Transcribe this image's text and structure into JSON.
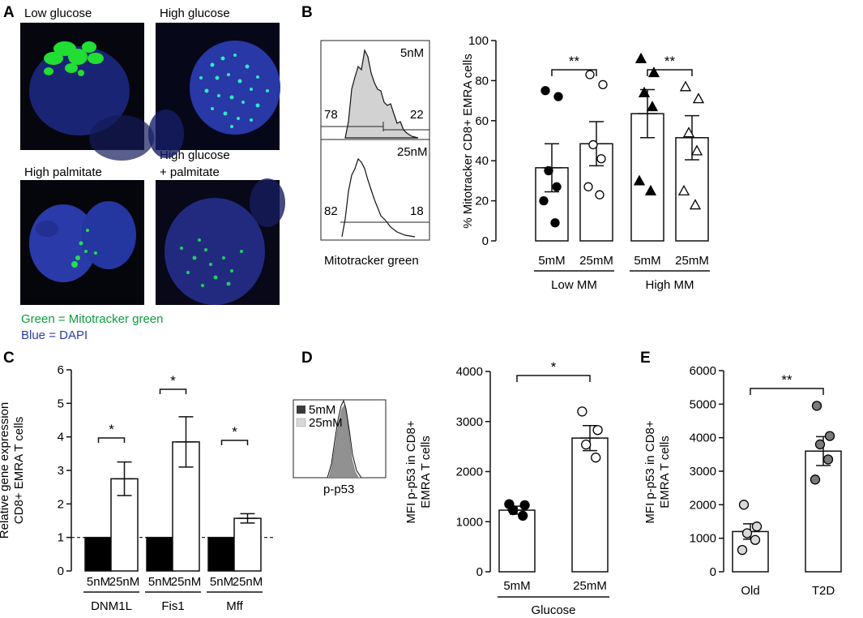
{
  "panel_letters": {
    "a": "A",
    "b": "B",
    "c": "C",
    "d": "D",
    "e": "E"
  },
  "panelA": {
    "images": [
      {
        "label": "Low glucose",
        "nucleus": "#1f2a86",
        "dots": "#22dd33"
      },
      {
        "label": "High glucose",
        "nucleus": "#2838a6",
        "dots": "#33e6c4"
      },
      {
        "label": "High palmitate",
        "nucleus": "#2a3aa8",
        "dots": "#22dd55"
      },
      {
        "label_line1": "High glucose",
        "label_line2": "+ palmitate",
        "nucleus": "#222a80",
        "dots": "#22cc66"
      }
    ],
    "caption_green": "Green = Mitotracker green",
    "caption_blue": "Blue = DAPI"
  },
  "panelB_histogram": {
    "top": {
      "label": "5nM",
      "left_pct": "78",
      "right_pct": "22"
    },
    "bottom": {
      "label": "25nM",
      "left_pct": "82",
      "right_pct": "18"
    },
    "xlabel": "Mitotracker green"
  },
  "chart_data": [
    {
      "id": "B",
      "type": "bar",
      "ylabel": "% Mitotracker CD8+ EMRA cells",
      "ylim": [
        0,
        100
      ],
      "yticks": [
        "0",
        "20",
        "40",
        "60",
        "80",
        "100"
      ],
      "categories": [
        "5mM",
        "25mM",
        "5mM",
        "25mM"
      ],
      "groups": [
        "Low MM",
        "High MM"
      ],
      "values": [
        36.5,
        48.5,
        63.5,
        51.5
      ],
      "sem": [
        12,
        11,
        12,
        11
      ],
      "points": [
        [
          75,
          72,
          35,
          27,
          20,
          9
        ],
        [
          83,
          78,
          48,
          41,
          27,
          23
        ],
        [
          91,
          84,
          74,
          67,
          30,
          25
        ],
        [
          77,
          71,
          54,
          45,
          25,
          18
        ]
      ],
      "markers": [
        "filled-circle",
        "open-circle",
        "filled-triangle",
        "open-triangle"
      ],
      "significance": [
        {
          "text": "**",
          "between": [
            0,
            1
          ]
        },
        {
          "text": "**",
          "between": [
            2,
            3
          ]
        }
      ]
    },
    {
      "id": "C",
      "type": "bar",
      "ylabel_line1": "Relative gene expression",
      "ylabel_line2": "CD8+ EMRA T cells",
      "ylim": [
        0,
        6
      ],
      "yticks": [
        "0",
        "1",
        "2",
        "3",
        "4",
        "5",
        "6"
      ],
      "categories": [
        "5nM",
        "25nM",
        "5nM",
        "25nM",
        "5nM",
        "25nM"
      ],
      "groups": [
        "DNM1L",
        "Fis1",
        "Mff"
      ],
      "values": [
        1,
        2.75,
        1,
        3.85,
        1,
        1.57
      ],
      "sem": [
        0,
        0.5,
        0,
        0.75,
        0,
        0.14
      ],
      "reference_line": 1,
      "significance": [
        {
          "text": "*",
          "between": [
            0,
            1
          ]
        },
        {
          "text": "*",
          "between": [
            2,
            3
          ]
        },
        {
          "text": "*",
          "between": [
            4,
            5
          ]
        }
      ]
    },
    {
      "id": "D",
      "type": "bar",
      "ylabel_line1": "MFI p-p53 in CD8+",
      "ylabel_line2": "EMRA T cells",
      "ylim": [
        0,
        4000
      ],
      "yticks": [
        "0",
        "1000",
        "2000",
        "3000",
        "4000"
      ],
      "categories": [
        "5mM",
        "25mM"
      ],
      "group": "Glucose",
      "values": [
        1230,
        2670
      ],
      "sem": [
        80,
        250
      ],
      "points": [
        [
          1350,
          1330,
          1230,
          1120
        ],
        [
          3200,
          2830,
          2540,
          2280
        ]
      ],
      "significance": [
        {
          "text": "*",
          "between": [
            0,
            1
          ]
        }
      ]
    },
    {
      "id": "E",
      "type": "bar",
      "ylabel_line1": "MFI p-p53 in CD8+",
      "ylabel_line2": "EMRA T cells",
      "ylim": [
        0,
        6000
      ],
      "yticks": [
        "0",
        "1000",
        "2000",
        "3000",
        "4000",
        "5000",
        "6000"
      ],
      "categories": [
        "Old",
        "T2D"
      ],
      "values": [
        1200,
        3600
      ],
      "sem": [
        230,
        430
      ],
      "points": [
        [
          2000,
          1350,
          1150,
          950,
          650
        ],
        [
          4950,
          4050,
          3800,
          3350,
          2750
        ]
      ],
      "significance": [
        {
          "text": "**",
          "between": [
            0,
            1
          ]
        }
      ]
    }
  ],
  "panelD_histogram": {
    "legend": [
      "5mM",
      "25mM"
    ],
    "legend_colors": [
      "#3a3a3a",
      "#d8d8d8"
    ],
    "xlabel": "p-p53"
  }
}
